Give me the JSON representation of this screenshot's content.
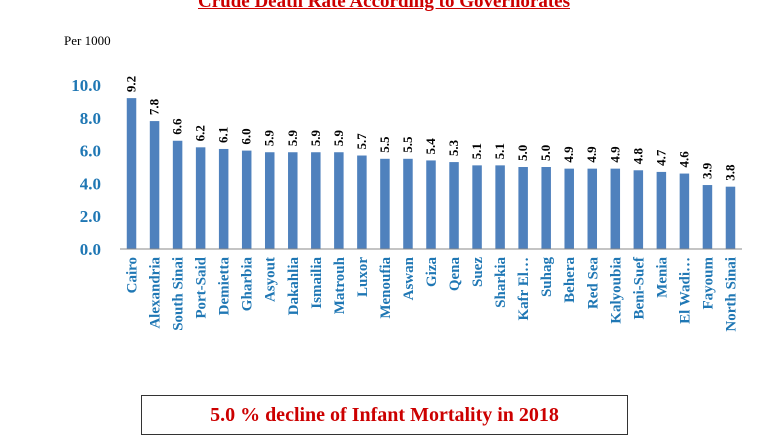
{
  "title": "Crude Death Rate According to Governorates",
  "unit_label": "Per 1000",
  "note": "5.0 % decline of Infant Mortality in 2018",
  "colors": {
    "bar": "#4f81bd",
    "axis_text": "#1f77b4",
    "title": "#cc0000"
  },
  "chart_data": {
    "type": "bar",
    "title": "Crude Death Rate According to Governorates",
    "ylabel": "Per 1000",
    "xlabel": "",
    "ylim": [
      0,
      10
    ],
    "yticks": [
      "0.0",
      "2.0",
      "4.0",
      "6.0",
      "8.0",
      "10.0"
    ],
    "grid": false,
    "categories": [
      "Cairo",
      "Alexandria",
      "South Sinai",
      "Port-Said",
      "Demietta",
      "Gharbia",
      "Asyout",
      "Dakahlia",
      "Ismailia",
      "Matrouh",
      "Luxor",
      "Menoufia",
      "Aswan",
      "Giza",
      "Qena",
      "Suez",
      "Sharkia",
      "Kafr El…",
      "Suhag",
      "Behera",
      "Red Sea",
      "Kalyoubia",
      "Beni-Suef",
      "Menia",
      "El Wadi…",
      "Fayoum",
      "North Sinai"
    ],
    "values": [
      9.2,
      7.8,
      6.6,
      6.2,
      6.1,
      6.0,
      5.9,
      5.9,
      5.9,
      5.9,
      5.7,
      5.5,
      5.5,
      5.4,
      5.3,
      5.1,
      5.1,
      5.0,
      5.0,
      4.9,
      4.9,
      4.9,
      4.8,
      4.7,
      4.6,
      3.9,
      3.8
    ],
    "data_labels": [
      "9.2",
      "7.8",
      "6.6",
      "6.2",
      "6.1",
      "6.0",
      "5.9",
      "5.9",
      "5.9",
      "5.9",
      "5.7",
      "5.5",
      "5.5",
      "5.4",
      "5.3",
      "5.1",
      "5.1",
      "5.0",
      "5.0",
      "4.9",
      "4.9",
      "4.9",
      "4.8",
      "4.7",
      "4.6",
      "3.9",
      "3.8"
    ]
  }
}
